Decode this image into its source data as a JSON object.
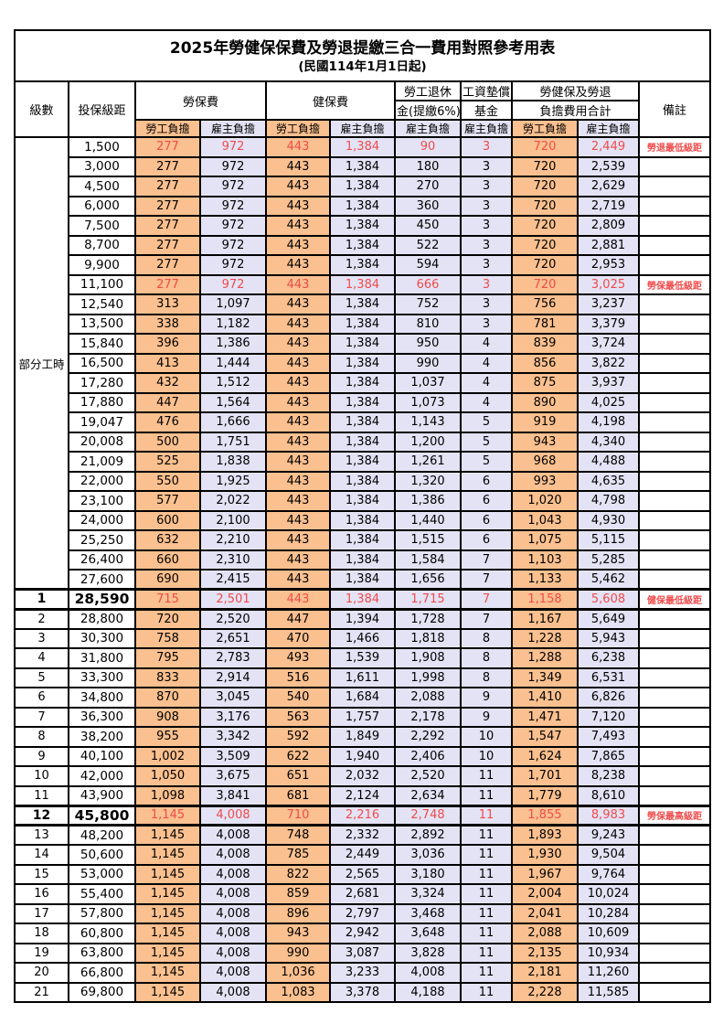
{
  "title": "2025年勞健保保費及勞退提繳三合一費用對照參考用表",
  "subtitle": "(民國114年1月1日起)",
  "colors": {
    "employee_bg": "#FAC08F",
    "employer_bg": "#E4E3F5",
    "red_text": "#F04B4B",
    "border": "#000000"
  },
  "header": {
    "level": "級數",
    "bracket": "投保級距",
    "labor_insurance": "勞保費",
    "health_insurance": "健保費",
    "pension_line1": "勞工退休",
    "pension_line2": "金(提繳6%)",
    "wage_fund_line1": "工資墊償",
    "wage_fund_line2": "基金",
    "total_line1": "勞健保及勞退",
    "total_line2": "負擔費用合計",
    "remark": "備註",
    "employee_share": "勞工負擔",
    "employer_share": "雇主負擔"
  },
  "part_time": {
    "label": "部分工時",
    "span": 23
  },
  "rows": [
    {
      "level": null,
      "bracket": "1,500",
      "values": [
        "277",
        "972",
        "443",
        "1,384",
        "90",
        "3",
        "720",
        "2,449"
      ],
      "remark": "勞退最低級距",
      "highlight": true,
      "key": false
    },
    {
      "level": null,
      "bracket": "3,000",
      "values": [
        "277",
        "972",
        "443",
        "1,384",
        "180",
        "3",
        "720",
        "2,539"
      ],
      "remark": "",
      "highlight": false,
      "key": false
    },
    {
      "level": null,
      "bracket": "4,500",
      "values": [
        "277",
        "972",
        "443",
        "1,384",
        "270",
        "3",
        "720",
        "2,629"
      ],
      "remark": "",
      "highlight": false,
      "key": false
    },
    {
      "level": null,
      "bracket": "6,000",
      "values": [
        "277",
        "972",
        "443",
        "1,384",
        "360",
        "3",
        "720",
        "2,719"
      ],
      "remark": "",
      "highlight": false,
      "key": false
    },
    {
      "level": null,
      "bracket": "7,500",
      "values": [
        "277",
        "972",
        "443",
        "1,384",
        "450",
        "3",
        "720",
        "2,809"
      ],
      "remark": "",
      "highlight": false,
      "key": false
    },
    {
      "level": null,
      "bracket": "8,700",
      "values": [
        "277",
        "972",
        "443",
        "1,384",
        "522",
        "3",
        "720",
        "2,881"
      ],
      "remark": "",
      "highlight": false,
      "key": false
    },
    {
      "level": null,
      "bracket": "9,900",
      "values": [
        "277",
        "972",
        "443",
        "1,384",
        "594",
        "3",
        "720",
        "2,953"
      ],
      "remark": "",
      "highlight": false,
      "key": false
    },
    {
      "level": null,
      "bracket": "11,100",
      "values": [
        "277",
        "972",
        "443",
        "1,384",
        "666",
        "3",
        "720",
        "3,025"
      ],
      "remark": "勞保最低級距",
      "highlight": true,
      "key": false
    },
    {
      "level": null,
      "bracket": "12,540",
      "values": [
        "313",
        "1,097",
        "443",
        "1,384",
        "752",
        "3",
        "756",
        "3,237"
      ],
      "remark": "",
      "highlight": false,
      "key": false
    },
    {
      "level": null,
      "bracket": "13,500",
      "values": [
        "338",
        "1,182",
        "443",
        "1,384",
        "810",
        "3",
        "781",
        "3,379"
      ],
      "remark": "",
      "highlight": false,
      "key": false
    },
    {
      "level": null,
      "bracket": "15,840",
      "values": [
        "396",
        "1,386",
        "443",
        "1,384",
        "950",
        "4",
        "839",
        "3,724"
      ],
      "remark": "",
      "highlight": false,
      "key": false
    },
    {
      "level": null,
      "bracket": "16,500",
      "values": [
        "413",
        "1,444",
        "443",
        "1,384",
        "990",
        "4",
        "856",
        "3,822"
      ],
      "remark": "",
      "highlight": false,
      "key": false
    },
    {
      "level": null,
      "bracket": "17,280",
      "values": [
        "432",
        "1,512",
        "443",
        "1,384",
        "1,037",
        "4",
        "875",
        "3,937"
      ],
      "remark": "",
      "highlight": false,
      "key": false
    },
    {
      "level": null,
      "bracket": "17,880",
      "values": [
        "447",
        "1,564",
        "443",
        "1,384",
        "1,073",
        "4",
        "890",
        "4,025"
      ],
      "remark": "",
      "highlight": false,
      "key": false
    },
    {
      "level": null,
      "bracket": "19,047",
      "values": [
        "476",
        "1,666",
        "443",
        "1,384",
        "1,143",
        "5",
        "919",
        "4,198"
      ],
      "remark": "",
      "highlight": false,
      "key": false
    },
    {
      "level": null,
      "bracket": "20,008",
      "values": [
        "500",
        "1,751",
        "443",
        "1,384",
        "1,200",
        "5",
        "943",
        "4,340"
      ],
      "remark": "",
      "highlight": false,
      "key": false
    },
    {
      "level": null,
      "bracket": "21,009",
      "values": [
        "525",
        "1,838",
        "443",
        "1,384",
        "1,261",
        "5",
        "968",
        "4,488"
      ],
      "remark": "",
      "highlight": false,
      "key": false
    },
    {
      "level": null,
      "bracket": "22,000",
      "values": [
        "550",
        "1,925",
        "443",
        "1,384",
        "1,320",
        "6",
        "993",
        "4,635"
      ],
      "remark": "",
      "highlight": false,
      "key": false
    },
    {
      "level": null,
      "bracket": "23,100",
      "values": [
        "577",
        "2,022",
        "443",
        "1,384",
        "1,386",
        "6",
        "1,020",
        "4,798"
      ],
      "remark": "",
      "highlight": false,
      "key": false
    },
    {
      "level": null,
      "bracket": "24,000",
      "values": [
        "600",
        "2,100",
        "443",
        "1,384",
        "1,440",
        "6",
        "1,043",
        "4,930"
      ],
      "remark": "",
      "highlight": false,
      "key": false
    },
    {
      "level": null,
      "bracket": "25,250",
      "values": [
        "632",
        "2,210",
        "443",
        "1,384",
        "1,515",
        "6",
        "1,075",
        "5,115"
      ],
      "remark": "",
      "highlight": false,
      "key": false
    },
    {
      "level": null,
      "bracket": "26,400",
      "values": [
        "660",
        "2,310",
        "443",
        "1,384",
        "1,584",
        "7",
        "1,103",
        "5,285"
      ],
      "remark": "",
      "highlight": false,
      "key": false
    },
    {
      "level": null,
      "bracket": "27,600",
      "values": [
        "690",
        "2,415",
        "443",
        "1,384",
        "1,656",
        "7",
        "1,133",
        "5,462"
      ],
      "remark": "",
      "highlight": false,
      "key": false
    },
    {
      "level": "1",
      "bracket": "28,590",
      "values": [
        "715",
        "2,501",
        "443",
        "1,384",
        "1,715",
        "7",
        "1,158",
        "5,608"
      ],
      "remark": "健保最低級距",
      "highlight": true,
      "key": true
    },
    {
      "level": "2",
      "bracket": "28,800",
      "values": [
        "720",
        "2,520",
        "447",
        "1,394",
        "1,728",
        "7",
        "1,167",
        "5,649"
      ],
      "remark": "",
      "highlight": false,
      "key": false
    },
    {
      "level": "3",
      "bracket": "30,300",
      "values": [
        "758",
        "2,651",
        "470",
        "1,466",
        "1,818",
        "8",
        "1,228",
        "5,943"
      ],
      "remark": "",
      "highlight": false,
      "key": false
    },
    {
      "level": "4",
      "bracket": "31,800",
      "values": [
        "795",
        "2,783",
        "493",
        "1,539",
        "1,908",
        "8",
        "1,288",
        "6,238"
      ],
      "remark": "",
      "highlight": false,
      "key": false
    },
    {
      "level": "5",
      "bracket": "33,300",
      "values": [
        "833",
        "2,914",
        "516",
        "1,611",
        "1,998",
        "8",
        "1,349",
        "6,531"
      ],
      "remark": "",
      "highlight": false,
      "key": false
    },
    {
      "level": "6",
      "bracket": "34,800",
      "values": [
        "870",
        "3,045",
        "540",
        "1,684",
        "2,088",
        "9",
        "1,410",
        "6,826"
      ],
      "remark": "",
      "highlight": false,
      "key": false
    },
    {
      "level": "7",
      "bracket": "36,300",
      "values": [
        "908",
        "3,176",
        "563",
        "1,757",
        "2,178",
        "9",
        "1,471",
        "7,120"
      ],
      "remark": "",
      "highlight": false,
      "key": false
    },
    {
      "level": "8",
      "bracket": "38,200",
      "values": [
        "955",
        "3,342",
        "592",
        "1,849",
        "2,292",
        "10",
        "1,547",
        "7,493"
      ],
      "remark": "",
      "highlight": false,
      "key": false
    },
    {
      "level": "9",
      "bracket": "40,100",
      "values": [
        "1,002",
        "3,509",
        "622",
        "1,940",
        "2,406",
        "10",
        "1,624",
        "7,865"
      ],
      "remark": "",
      "highlight": false,
      "key": false
    },
    {
      "level": "10",
      "bracket": "42,000",
      "values": [
        "1,050",
        "3,675",
        "651",
        "2,032",
        "2,520",
        "11",
        "1,701",
        "8,238"
      ],
      "remark": "",
      "highlight": false,
      "key": false
    },
    {
      "level": "11",
      "bracket": "43,900",
      "values": [
        "1,098",
        "3,841",
        "681",
        "2,124",
        "2,634",
        "11",
        "1,779",
        "8,610"
      ],
      "remark": "",
      "highlight": false,
      "key": false
    },
    {
      "level": "12",
      "bracket": "45,800",
      "values": [
        "1,145",
        "4,008",
        "710",
        "2,216",
        "2,748",
        "11",
        "1,855",
        "8,983"
      ],
      "remark": "勞保最高級距",
      "highlight": true,
      "key": true
    },
    {
      "level": "13",
      "bracket": "48,200",
      "values": [
        "1,145",
        "4,008",
        "748",
        "2,332",
        "2,892",
        "11",
        "1,893",
        "9,243"
      ],
      "remark": "",
      "highlight": false,
      "key": false
    },
    {
      "level": "14",
      "bracket": "50,600",
      "values": [
        "1,145",
        "4,008",
        "785",
        "2,449",
        "3,036",
        "11",
        "1,930",
        "9,504"
      ],
      "remark": "",
      "highlight": false,
      "key": false
    },
    {
      "level": "15",
      "bracket": "53,000",
      "values": [
        "1,145",
        "4,008",
        "822",
        "2,565",
        "3,180",
        "11",
        "1,967",
        "9,764"
      ],
      "remark": "",
      "highlight": false,
      "key": false
    },
    {
      "level": "16",
      "bracket": "55,400",
      "values": [
        "1,145",
        "4,008",
        "859",
        "2,681",
        "3,324",
        "11",
        "2,004",
        "10,024"
      ],
      "remark": "",
      "highlight": false,
      "key": false
    },
    {
      "level": "17",
      "bracket": "57,800",
      "values": [
        "1,145",
        "4,008",
        "896",
        "2,797",
        "3,468",
        "11",
        "2,041",
        "10,284"
      ],
      "remark": "",
      "highlight": false,
      "key": false
    },
    {
      "level": "18",
      "bracket": "60,800",
      "values": [
        "1,145",
        "4,008",
        "943",
        "2,942",
        "3,648",
        "11",
        "2,088",
        "10,609"
      ],
      "remark": "",
      "highlight": false,
      "key": false
    },
    {
      "level": "19",
      "bracket": "63,800",
      "values": [
        "1,145",
        "4,008",
        "990",
        "3,087",
        "3,828",
        "11",
        "2,135",
        "10,934"
      ],
      "remark": "",
      "highlight": false,
      "key": false
    },
    {
      "level": "20",
      "bracket": "66,800",
      "values": [
        "1,145",
        "4,008",
        "1,036",
        "3,233",
        "4,008",
        "11",
        "2,181",
        "11,260"
      ],
      "remark": "",
      "highlight": false,
      "key": false
    },
    {
      "level": "21",
      "bracket": "69,800",
      "values": [
        "1,145",
        "4,008",
        "1,083",
        "3,378",
        "4,188",
        "11",
        "2,228",
        "11,585"
      ],
      "remark": "",
      "highlight": false,
      "key": false
    }
  ]
}
